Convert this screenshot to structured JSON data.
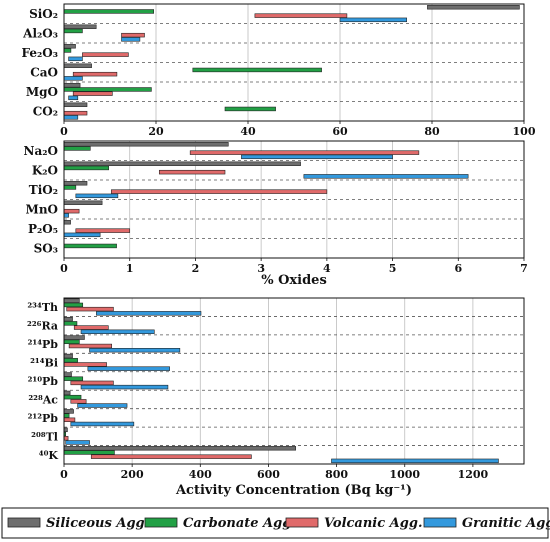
{
  "series_names": [
    "Siliceous Agg.",
    "Carbonate Agg.",
    "Volcanic Agg.",
    "Granitic Agg."
  ],
  "series_colors": [
    "#6e6e6e",
    "#22a045",
    "#e06a6a",
    "#3399dd"
  ],
  "chart_data": [
    {
      "type": "bar",
      "orientation": "horizontal-range",
      "xlim": [
        0,
        100
      ],
      "xticks": [
        "0",
        "20",
        "40",
        "60",
        "80",
        "100"
      ],
      "categories": [
        "SiO₂",
        "Al₂O₃",
        "Fe₂O₃",
        "CaO",
        "MgO",
        "CO₂"
      ],
      "series": [
        {
          "name": "Siliceous Agg.",
          "ranges": [
            [
              79,
              99
            ],
            [
              0,
              7
            ],
            [
              0,
              2.5
            ],
            [
              0,
              6
            ],
            [
              0,
              3.5
            ],
            [
              0,
              5
            ]
          ]
        },
        {
          "name": "Carbonate Agg.",
          "ranges": [
            [
              0,
              19.5
            ],
            [
              0,
              4
            ],
            [
              0,
              1.5
            ],
            [
              28,
              56
            ],
            [
              0,
              19
            ],
            [
              35,
              46
            ]
          ]
        },
        {
          "name": "Volcanic Agg.",
          "ranges": [
            [
              41.5,
              61.5
            ],
            [
              12.5,
              17.5
            ],
            [
              4,
              14
            ],
            [
              2,
              11.5
            ],
            [
              2,
              10.5
            ],
            [
              0,
              5
            ]
          ]
        },
        {
          "name": "Granitic Agg.",
          "ranges": [
            [
              60,
              74.5
            ],
            [
              12.5,
              16.5
            ],
            [
              1,
              4
            ],
            [
              0,
              4
            ],
            [
              1,
              3
            ],
            [
              0,
              3
            ]
          ]
        }
      ]
    },
    {
      "type": "bar",
      "orientation": "horizontal-range",
      "xlabel": "% Oxides",
      "xlim": [
        0,
        7
      ],
      "xticks": [
        "0",
        "1",
        "2",
        "3",
        "4",
        "5",
        "6",
        "7"
      ],
      "categories": [
        "Na₂O",
        "K₂O",
        "TiO₂",
        "MnO",
        "P₂O₅",
        "SO₃"
      ],
      "series": [
        {
          "name": "Siliceous Agg.",
          "ranges": [
            [
              0,
              2.5
            ],
            [
              0,
              3.6
            ],
            [
              0,
              0.35
            ],
            [
              0,
              0.58
            ],
            [
              0,
              0.1
            ],
            [
              0,
              0
            ]
          ]
        },
        {
          "name": "Carbonate Agg.",
          "ranges": [
            [
              0,
              0.4
            ],
            [
              0,
              0.68
            ],
            [
              0,
              0.18
            ],
            [
              0,
              0
            ],
            [
              0,
              0
            ],
            [
              0,
              0.8
            ]
          ]
        },
        {
          "name": "Volcanic Agg.",
          "ranges": [
            [
              1.92,
              5.4
            ],
            [
              1.45,
              2.45
            ],
            [
              0.72,
              4.0
            ],
            [
              0,
              0.23
            ],
            [
              0.18,
              1.0
            ],
            [
              0,
              0
            ]
          ]
        },
        {
          "name": "Granitic Agg.",
          "ranges": [
            [
              2.7,
              5.0
            ],
            [
              3.65,
              6.15
            ],
            [
              0.18,
              0.82
            ],
            [
              0,
              0.07
            ],
            [
              0,
              0.55
            ],
            [
              0,
              0
            ]
          ]
        }
      ]
    },
    {
      "type": "bar",
      "orientation": "horizontal-range",
      "xlabel": "Activity Concentration (Bq kg⁻¹)",
      "xlim": [
        0,
        1350
      ],
      "xticks": [
        "0",
        "200",
        "400",
        "600",
        "800",
        "1000",
        "1200"
      ],
      "categories": [
        "²³⁴Th",
        "²²⁶Ra",
        "²¹⁴Pb",
        "²¹⁴Bi",
        "²¹⁰Pb",
        "²²⁸Ac",
        "²¹²Pb",
        "²⁰⁸Tl",
        "⁴⁰K"
      ],
      "series": [
        {
          "name": "Siliceous Agg.",
          "ranges": [
            [
              0,
              45
            ],
            [
              0,
              25
            ],
            [
              0,
              60
            ],
            [
              0,
              25
            ],
            [
              0,
              22
            ],
            [
              0,
              18
            ],
            [
              0,
              28
            ],
            [
              0,
              10
            ],
            [
              0,
              680
            ]
          ]
        },
        {
          "name": "Carbonate Agg.",
          "ranges": [
            [
              0,
              55
            ],
            [
              0,
              38
            ],
            [
              0,
              45
            ],
            [
              0,
              40
            ],
            [
              0,
              55
            ],
            [
              0,
              50
            ],
            [
              0,
              15
            ],
            [
              0,
              5
            ],
            [
              0,
              148
            ]
          ]
        },
        {
          "name": "Volcanic Agg.",
          "ranges": [
            [
              8,
              145
            ],
            [
              30,
              130
            ],
            [
              15,
              140
            ],
            [
              0,
              125
            ],
            [
              20,
              145
            ],
            [
              20,
              65
            ],
            [
              0,
              32
            ],
            [
              0,
              12
            ],
            [
              80,
              550
            ]
          ]
        },
        {
          "name": "Granitic Agg.",
          "ranges": [
            [
              95,
              402
            ],
            [
              50,
              265
            ],
            [
              75,
              340
            ],
            [
              70,
              310
            ],
            [
              50,
              305
            ],
            [
              40,
              185
            ],
            [
              20,
              205
            ],
            [
              5,
              75
            ],
            [
              785,
              1275
            ]
          ]
        }
      ]
    }
  ]
}
